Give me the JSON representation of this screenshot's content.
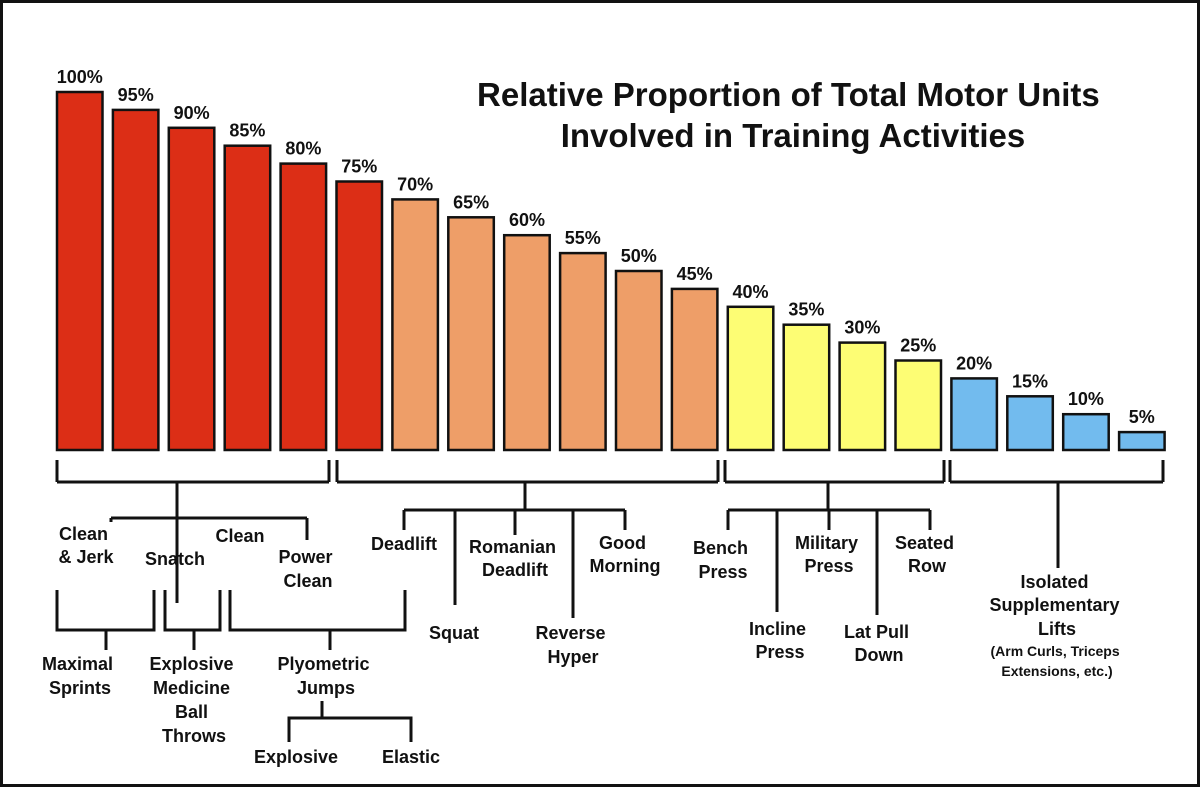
{
  "colors": {
    "red": "#dc2e16",
    "orange": "#ee9e68",
    "yellow": "#fdfd74",
    "blue": "#72bbee",
    "ink": "#111111"
  },
  "chart_data": {
    "type": "bar",
    "title": "Relative Proportion of Total Motor Units Involved in Training Activities",
    "title_lines": [
      "Relative Proportion of Total Motor Units",
      "Involved in Training Activities"
    ],
    "values": [
      100,
      95,
      90,
      85,
      80,
      75,
      70,
      65,
      60,
      55,
      50,
      45,
      40,
      35,
      30,
      25,
      20,
      15,
      10,
      5
    ],
    "labels": [
      "100%",
      "95%",
      "90%",
      "85%",
      "80%",
      "75%",
      "70%",
      "65%",
      "60%",
      "55%",
      "50%",
      "45%",
      "40%",
      "35%",
      "30%",
      "25%",
      "20%",
      "15%",
      "10%",
      "5%"
    ],
    "bar_colors": [
      "red",
      "red",
      "red",
      "red",
      "red",
      "red",
      "orange",
      "orange",
      "orange",
      "orange",
      "orange",
      "orange",
      "yellow",
      "yellow",
      "yellow",
      "yellow",
      "blue",
      "blue",
      "blue",
      "blue"
    ],
    "ylim": [
      0,
      100
    ],
    "xlabel": "",
    "ylabel": "",
    "grid": false,
    "groups": [
      {
        "color": "red",
        "activities": [
          {
            "lines": [
              "Clean",
              "& Jerk"
            ]
          },
          {
            "lines": [
              "Snatch"
            ]
          },
          {
            "lines": [
              "Clean"
            ]
          },
          {
            "lines": [
              "Power",
              "Clean"
            ]
          }
        ],
        "sub_activities": [
          {
            "lines": [
              "Maximal",
              "Sprints"
            ]
          },
          {
            "lines": [
              "Explosive",
              "Medicine",
              "Ball",
              "Throws"
            ]
          },
          {
            "lines": [
              "Plyometric",
              "Jumps"
            ]
          }
        ],
        "jump_types": [
          {
            "lines": [
              "Explosive"
            ]
          },
          {
            "lines": [
              "Elastic"
            ]
          }
        ]
      },
      {
        "color": "orange",
        "activities": [
          {
            "lines": [
              "Deadlift"
            ]
          },
          {
            "lines": [
              "Squat"
            ]
          },
          {
            "lines": [
              "Romanian",
              "Deadlift"
            ]
          },
          {
            "lines": [
              "Reverse",
              "Hyper"
            ]
          },
          {
            "lines": [
              "Good",
              "Morning"
            ]
          }
        ]
      },
      {
        "color": "yellow",
        "activities": [
          {
            "lines": [
              "Bench",
              "Press"
            ]
          },
          {
            "lines": [
              "Incline",
              "Press"
            ]
          },
          {
            "lines": [
              "Military",
              "Press"
            ]
          },
          {
            "lines": [
              "Lat Pull",
              "Down"
            ]
          },
          {
            "lines": [
              "Seated",
              "Row"
            ]
          }
        ]
      },
      {
        "color": "blue",
        "activities": [
          {
            "lines": [
              "Isolated",
              "Supplementary",
              "Lifts"
            ],
            "note": [
              "(Arm Curls, Triceps",
              "Extensions, etc.)"
            ]
          }
        ]
      }
    ]
  }
}
